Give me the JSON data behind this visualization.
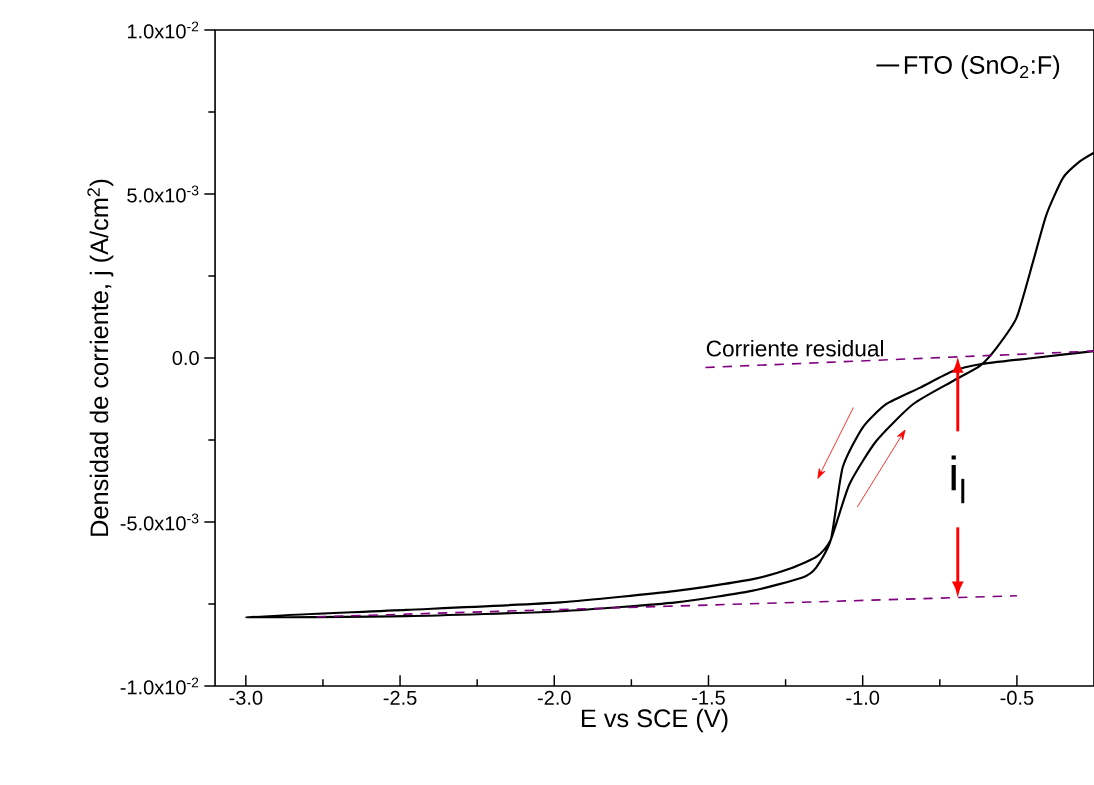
{
  "chart_data": {
    "type": "line",
    "xlabel": "E vs SCE (V)",
    "ylabel": "Densidad de corriente, j (A/cm$^{2}$)",
    "xlim": [
      -3.1,
      -0.25
    ],
    "ylim": [
      -0.01,
      0.01
    ],
    "xticks": [
      {
        "value": -3.0,
        "label": "-3.0"
      },
      {
        "value": -2.5,
        "label": "-2.5"
      },
      {
        "value": -2.0,
        "label": "-2.0"
      },
      {
        "value": -1.5,
        "label": "-1.5"
      },
      {
        "value": -1.0,
        "label": "-1.0"
      },
      {
        "value": -0.5,
        "label": "-0.5"
      }
    ],
    "yticks": [
      {
        "value": -0.01,
        "label": "-1.0x10$^{-2}$"
      },
      {
        "value": -0.005,
        "label": "-5.0x10$^{-3}$"
      },
      {
        "value": 0,
        "label": "0.0"
      },
      {
        "value": 0.005,
        "label": "5.0x10$^{-3}$"
      },
      {
        "value": 0.01,
        "label": "1.0x10$^{-2}$"
      }
    ],
    "legend": "top right",
    "grid": false,
    "series": [
      {
        "name": "FTO (SnO$_{2}$:F)",
        "color": "#000000",
        "line_style": "solid",
        "x": [
          -0.25,
          -0.447,
          -0.62,
          -0.707,
          -0.815,
          -0.924,
          -1.0,
          -1.065,
          -1.103,
          -1.151,
          -1.195,
          -1.36,
          -1.605,
          -1.98,
          -2.48,
          -3.0,
          -2.48,
          -1.98,
          -1.605,
          -1.36,
          -1.23,
          -1.147,
          -1.103,
          -1.043,
          -0.956,
          -0.837,
          -0.707,
          -0.62,
          -0.566,
          -0.501,
          -0.447,
          -0.404,
          -0.35,
          -0.295,
          -0.25
        ],
        "values": [
          0.00021,
          0.0,
          -0.00019,
          -0.0004,
          -0.00091,
          -0.00141,
          -0.00212,
          -0.00334,
          -0.00553,
          -0.00639,
          -0.00669,
          -0.0071,
          -0.00745,
          -0.00772,
          -0.00787,
          -0.0079,
          -0.00768,
          -0.00745,
          -0.0071,
          -0.00675,
          -0.0064,
          -0.00604,
          -0.00553,
          -0.00385,
          -0.00253,
          -0.00141,
          -0.0007,
          -0.00024,
          0.00031,
          0.00123,
          0.00296,
          0.00438,
          0.0055,
          0.006,
          0.00626
        ]
      },
      {
        "color": "#800080",
        "line_style": "dashed",
        "x": [
          -1.51,
          -0.25
        ],
        "values": [
          -0.00029,
          0.00021
        ]
      },
      {
        "color": "#800080",
        "line_style": "dashed",
        "x": [
          -2.77,
          -0.5
        ],
        "values": [
          -0.00789,
          -0.00725
        ]
      }
    ],
    "annotations": [
      "Corriente residual",
      "i$_{l}$"
    ]
  }
}
